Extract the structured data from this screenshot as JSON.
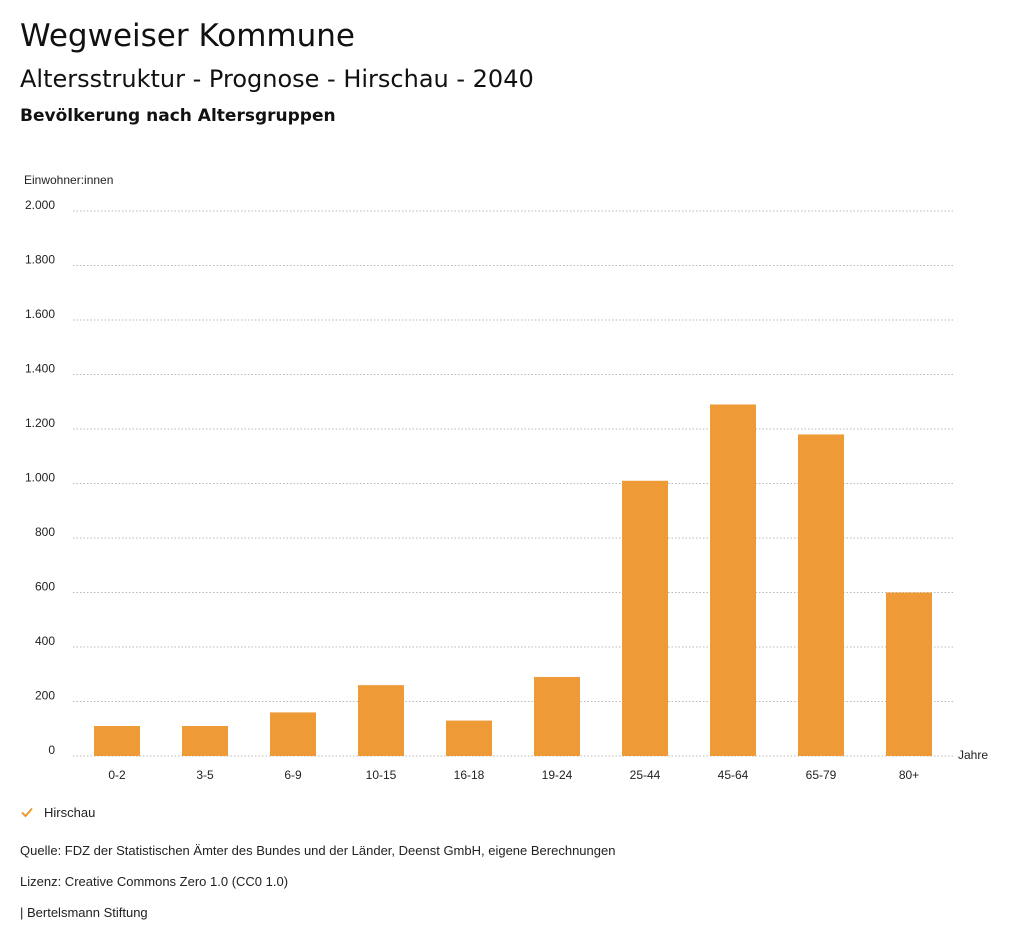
{
  "header": {
    "title": "Wegweiser Kommune",
    "subtitle": "Altersstruktur - Prognose - Hirschau - 2040",
    "subheading": "Bevölkerung nach Altersgruppen"
  },
  "chart_data": {
    "type": "bar",
    "ylabel": "Einwohner:innen",
    "xlabel": "Jahre",
    "ylim": [
      0,
      2000
    ],
    "yticks": [
      0,
      200,
      400,
      600,
      800,
      1000,
      1200,
      1400,
      1600,
      1800,
      2000
    ],
    "ytick_labels": [
      "0",
      "200",
      "400",
      "600",
      "800",
      "1.000",
      "1.200",
      "1.400",
      "1.600",
      "1.800",
      "2.000"
    ],
    "grid": true,
    "categories": [
      "0-2",
      "3-5",
      "6-9",
      "10-15",
      "16-18",
      "19-24",
      "25-44",
      "45-64",
      "65-79",
      "80+"
    ],
    "series": [
      {
        "name": "Hirschau",
        "color": "#ED9A37",
        "values": [
          110,
          110,
          160,
          260,
          130,
          290,
          1010,
          1290,
          1180,
          600
        ]
      }
    ],
    "legend_position": "bottom-left"
  },
  "legend": {
    "label": "Hirschau",
    "icon": "check-icon",
    "color": "#ED9A37"
  },
  "footer": {
    "source": "Quelle: FDZ der Statistischen Ämter des Bundes und der Länder, Deenst GmbH, eigene Berechnungen",
    "license": "Lizenz: Creative Commons Zero 1.0 (CC0 1.0)",
    "publisher": "| Bertelsmann Stiftung"
  }
}
